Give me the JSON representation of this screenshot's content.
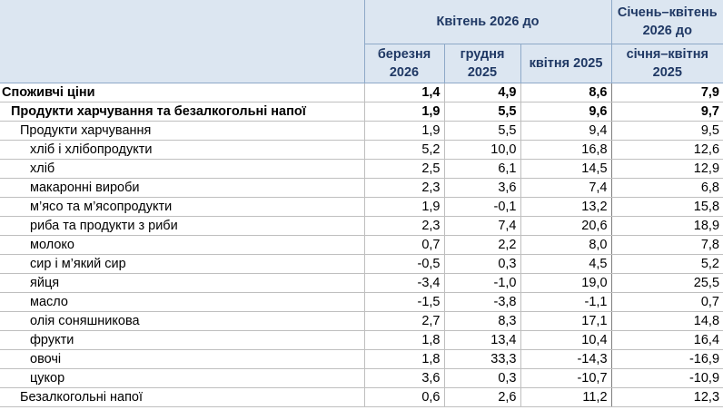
{
  "header": {
    "group_label": "Квітень 2026 до",
    "ytd_label": "Січень–квітень 2026 до",
    "columns": [
      "березня 2026",
      "грудня 2025",
      "квітня 2025",
      "січня–квітня 2025"
    ]
  },
  "rows": [
    {
      "label": "Споживчі ціни",
      "level": 0,
      "bold": true,
      "values": [
        "1,4",
        "4,9",
        "8,6",
        "7,9"
      ]
    },
    {
      "label": "Продукти харчування та безалкогольні напої",
      "level": 1,
      "bold": true,
      "values": [
        "1,9",
        "5,5",
        "9,6",
        "9,7"
      ]
    },
    {
      "label": "Продукти харчування",
      "level": 2,
      "bold": false,
      "values": [
        "1,9",
        "5,5",
        "9,4",
        "9,5"
      ]
    },
    {
      "label": "хліб і хлібопродукти",
      "level": 3,
      "bold": false,
      "values": [
        "5,2",
        "10,0",
        "16,8",
        "12,6"
      ]
    },
    {
      "label": "хліб",
      "level": 3,
      "bold": false,
      "values": [
        "2,5",
        "6,1",
        "14,5",
        "12,9"
      ]
    },
    {
      "label": "макаронні вироби",
      "level": 3,
      "bold": false,
      "values": [
        "2,3",
        "3,6",
        "7,4",
        "6,8"
      ]
    },
    {
      "label": "м’ясо та м’ясопродукти",
      "level": 3,
      "bold": false,
      "values": [
        "1,9",
        "-0,1",
        "13,2",
        "15,8"
      ]
    },
    {
      "label": "риба та продукти з риби",
      "level": 3,
      "bold": false,
      "values": [
        "2,3",
        "7,4",
        "20,6",
        "18,9"
      ]
    },
    {
      "label": "молоко",
      "level": 3,
      "bold": false,
      "values": [
        "0,7",
        "2,2",
        "8,0",
        "7,8"
      ]
    },
    {
      "label": "сир і м’який сир",
      "level": 3,
      "bold": false,
      "values": [
        "-0,5",
        "0,3",
        "4,5",
        "5,2"
      ]
    },
    {
      "label": "яйця",
      "level": 3,
      "bold": false,
      "values": [
        "-3,4",
        "-1,0",
        "19,0",
        "25,5"
      ]
    },
    {
      "label": "масло",
      "level": 3,
      "bold": false,
      "values": [
        "-1,5",
        "-3,8",
        "-1,1",
        "0,7"
      ]
    },
    {
      "label": "олія соняшникова",
      "level": 3,
      "bold": false,
      "values": [
        "2,7",
        "8,3",
        "17,1",
        "14,8"
      ]
    },
    {
      "label": "фрукти",
      "level": 3,
      "bold": false,
      "values": [
        "1,8",
        "13,4",
        "10,4",
        "16,4"
      ]
    },
    {
      "label": "овочі",
      "level": 3,
      "bold": false,
      "values": [
        "1,8",
        "33,3",
        "-14,3",
        "-16,9"
      ]
    },
    {
      "label": "цукор",
      "level": 3,
      "bold": false,
      "values": [
        "3,6",
        "0,3",
        "-10,7",
        "-10,9"
      ]
    },
    {
      "label": "Безалкогольні напої",
      "level": 2,
      "bold": false,
      "values": [
        "0,6",
        "2,6",
        "11,2",
        "12,3"
      ]
    }
  ]
}
